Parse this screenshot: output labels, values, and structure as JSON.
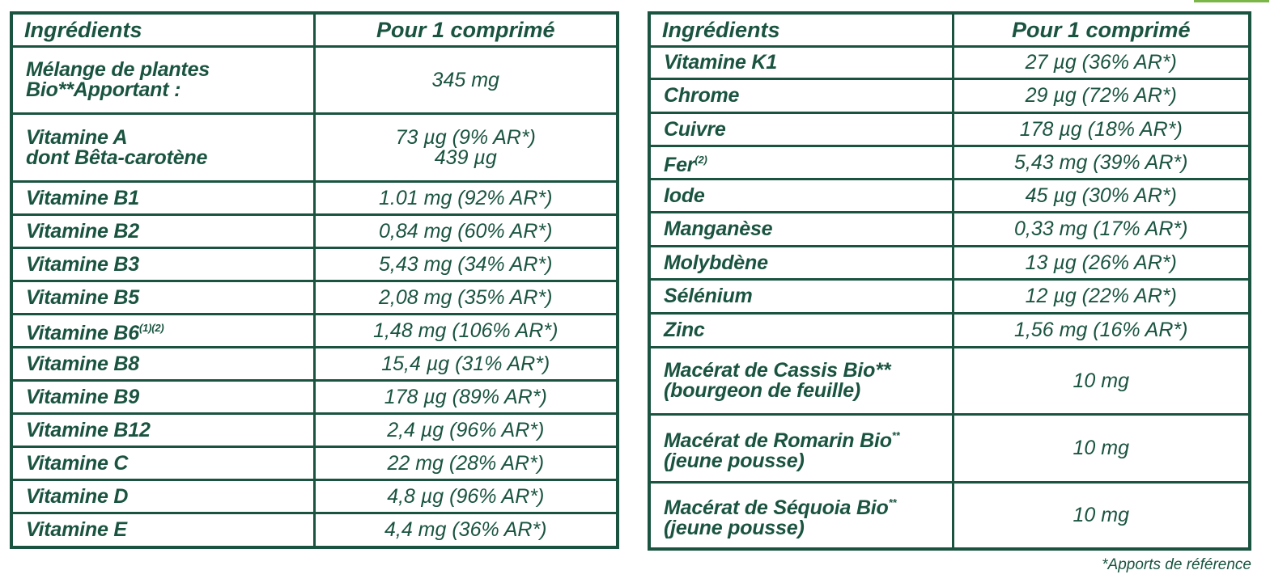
{
  "colors": {
    "primary": "#1a5440",
    "accent": "#7ab648"
  },
  "left_table": {
    "headers": [
      "Ingrédients",
      "Pour 1 comprimé"
    ],
    "rows": [
      {
        "name": "Mélange de plantes",
        "name2": "Bio**Apportant :",
        "sup": "",
        "value": "345 mg",
        "value2": ""
      },
      {
        "name": "Vitamine A",
        "name2": "dont Bêta-carotène",
        "sup": "",
        "value": "73 µg (9% AR*)",
        "value2": "439 µg"
      },
      {
        "name": "Vitamine B1",
        "name2": "",
        "sup": "",
        "value": "1.01 mg (92% AR*)",
        "value2": ""
      },
      {
        "name": "Vitamine B2",
        "name2": "",
        "sup": "",
        "value": "0,84 mg (60% AR*)",
        "value2": ""
      },
      {
        "name": "Vitamine B3",
        "name2": "",
        "sup": "",
        "value": "5,43 mg (34% AR*)",
        "value2": ""
      },
      {
        "name": "Vitamine B5",
        "name2": "",
        "sup": "",
        "value": "2,08 mg (35% AR*)",
        "value2": ""
      },
      {
        "name": "Vitamine B6",
        "name2": "",
        "sup": "(1)(2)",
        "value": "1,48 mg (106% AR*)",
        "value2": ""
      },
      {
        "name": "Vitamine B8",
        "name2": "",
        "sup": "",
        "value": "15,4 µg (31% AR*)",
        "value2": ""
      },
      {
        "name": "Vitamine B9",
        "name2": "",
        "sup": "",
        "value": "178 µg (89% AR*)",
        "value2": ""
      },
      {
        "name": "Vitamine B12",
        "name2": "",
        "sup": "",
        "value": "2,4 µg (96% AR*)",
        "value2": ""
      },
      {
        "name": "Vitamine C",
        "name2": "",
        "sup": "",
        "value": "22 mg (28% AR*)",
        "value2": ""
      },
      {
        "name": "Vitamine D",
        "name2": "",
        "sup": "",
        "value": "4,8 µg (96% AR*)",
        "value2": ""
      },
      {
        "name": "Vitamine E",
        "name2": "",
        "sup": "",
        "value": "4,4 mg (36% AR*)",
        "value2": ""
      }
    ]
  },
  "right_table": {
    "headers": [
      "Ingrédients",
      "Pour 1 comprimé"
    ],
    "rows": [
      {
        "name": "Vitamine K1",
        "name2": "",
        "sup": "",
        "value": "27 µg (36% AR*)"
      },
      {
        "name": "Chrome",
        "name2": "",
        "sup": "",
        "value": "29 µg (72% AR*)"
      },
      {
        "name": "Cuivre",
        "name2": "",
        "sup": "",
        "value": "178 µg (18% AR*)"
      },
      {
        "name": "Fer",
        "name2": "",
        "sup": "(2)",
        "value": "5,43 mg (39% AR*)"
      },
      {
        "name": "Iode",
        "name2": "",
        "sup": "",
        "value": "45 µg (30% AR*)"
      },
      {
        "name": "Manganèse",
        "name2": "",
        "sup": "",
        "value": "0,33 mg (17% AR*)"
      },
      {
        "name": "Molybdène",
        "name2": "",
        "sup": "",
        "value": "13 µg (26% AR*)"
      },
      {
        "name": "Sélénium",
        "name2": "",
        "sup": "",
        "value": "12 µg (22% AR*)"
      },
      {
        "name": "Zinc",
        "name2": "",
        "sup": "",
        "value": "1,56 mg (16% AR*)"
      },
      {
        "name": "Macérat de Cassis Bio**",
        "name2": "(bourgeon de feuille)",
        "sup": "",
        "value": "10 mg"
      },
      {
        "name": "Macérat de Romarin Bio",
        "name2": "(jeune pousse)",
        "sup": "**",
        "value": "10 mg"
      },
      {
        "name": "Macérat de Séquoia Bio",
        "name2": "(jeune pousse)",
        "sup": "**",
        "value": "10 mg"
      }
    ]
  },
  "footnote": "*Apports de référence"
}
